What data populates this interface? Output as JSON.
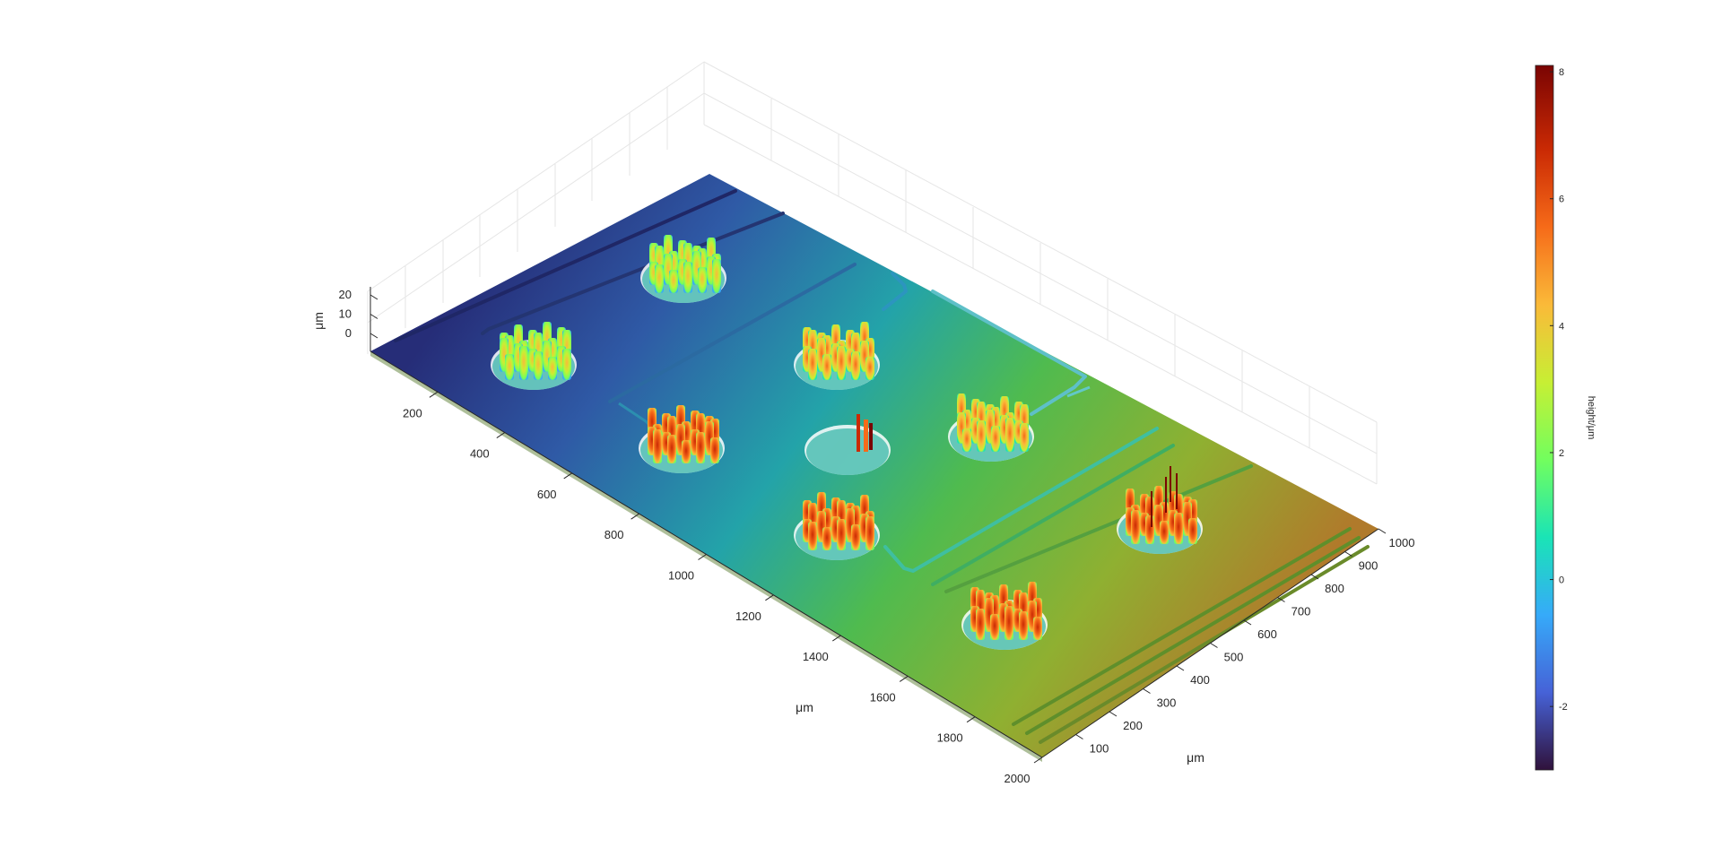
{
  "chart_data": {
    "type": "surface3d",
    "x_axis": {
      "label": "μm",
      "range": [
        0,
        2000
      ],
      "ticks": [
        "200",
        "400",
        "600",
        "800",
        "1000",
        "1200",
        "1400",
        "1600",
        "1800",
        "2000"
      ]
    },
    "y_axis": {
      "label": "μm",
      "range": [
        0,
        1000
      ],
      "ticks": [
        "100",
        "200",
        "300",
        "400",
        "500",
        "600",
        "700",
        "800",
        "900",
        "1000"
      ]
    },
    "z_axis": {
      "label": "μm",
      "range": [
        -5,
        25
      ],
      "ticks": [
        "0",
        "10",
        "20"
      ]
    },
    "colorbar": {
      "label": "height/μm",
      "colormap": "turbo",
      "range": [
        -3,
        8.1
      ],
      "ticks": [
        "-2",
        "0",
        "2",
        "4",
        "6",
        "8"
      ],
      "colors": [
        "#30123b",
        "#4662d7",
        "#36aaf9",
        "#1ae4b6",
        "#72fe5e",
        "#c7ef34",
        "#faba39",
        "#f66b19",
        "#ca2a04",
        "#7a0403"
      ]
    },
    "grid": true,
    "surface": {
      "base_height_gradient": "increases from about -3 μm at x=0, y=1000 to about 5 μm at x=2000, y=0",
      "pillar_arrays": 10,
      "pillar_height_approx": 8
    }
  }
}
